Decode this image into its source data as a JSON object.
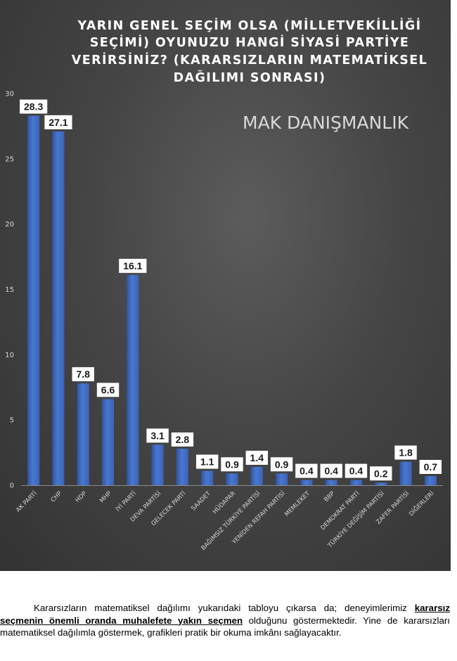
{
  "chart_data": {
    "type": "bar",
    "title": "YARIN GENEL SEÇİM OLSA (MİLLETVEKİLLİĞİ SEÇİMİ) OYUNUZU HANGİ SİYASİ PARTİYE VERİRSİNİZ? (KARARSIZLARIN MATEMATİKSEL DAĞILIMI SONRASI)",
    "title_lines": [
      "YARIN GENEL SEÇİM OLSA (MİLLETVEKİLLİĞİ",
      "SEÇİMİ) OYUNUZU HANGİ SİYASİ PARTİYE",
      "VERİRSİNİZ? (KARARSIZLARIN MATEMATİKSEL",
      "DAĞILIMI SONRASI)"
    ],
    "watermark": "MAK DANIŞMANLIK",
    "categories": [
      "AK PARTİ",
      "CHP",
      "HDP",
      "MHP",
      "İYİ PARTİ",
      "DEVA PARTİSİ",
      "GELECEK PARTİ",
      "SAADET",
      "HÜDAPAR",
      "BAĞIMSIZ TÜRKİYE PARTİSİ",
      "YENİDEN REFAH PARTİSİ",
      "MEMLEKET",
      "BBP",
      "DEMOKRAT PARTİ",
      "TÜRKİYE DEĞİŞİM PARTİSİ",
      "ZAFER PARTİSİ",
      "DİĞERLERİ"
    ],
    "values": [
      28.3,
      27.1,
      7.8,
      6.6,
      16.1,
      3.1,
      2.8,
      1.1,
      0.9,
      1.4,
      0.9,
      0.4,
      0.4,
      0.4,
      0.2,
      1.8,
      0.7
    ],
    "data_labels": [
      "28.3",
      "27.1",
      "7.8",
      "6.6",
      "16.1",
      "3.1",
      "2.8",
      "1.1",
      "0.9",
      "1.4",
      "0.9",
      "0.4",
      "0.4",
      "0.4",
      "0.2",
      "1.8",
      "0.7"
    ],
    "yticks": [
      0,
      5,
      10,
      15,
      20,
      25,
      30
    ],
    "ylim": [
      0,
      30
    ],
    "xlabel": "",
    "ylabel": "",
    "grid": false,
    "legend": "none",
    "bar_color": "#4472c4",
    "background_color": "#444444"
  },
  "note": {
    "before": "Kararsızların matematiksel dağılımı yukarıdaki tabloyu çıkarsa da; deneyimlerimiz ",
    "emphasis": "kararsız seçmenin önemli oranda muhalefete yakın seçmen",
    "after": " olduğunu göstermektedir. Yine de kararsızları matematiksel dağılımla göstermek, grafikleri pratik bir okuma imkânı sağlayacaktır."
  }
}
